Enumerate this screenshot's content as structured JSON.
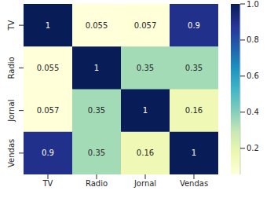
{
  "chart_data": {
    "type": "heatmap",
    "x_categories": [
      "TV",
      "Radio",
      "Jornal",
      "Vendas"
    ],
    "y_categories": [
      "TV",
      "Radio",
      "Jornal",
      "Vendas"
    ],
    "cells": [
      [
        1,
        0.055,
        0.057,
        0.9
      ],
      [
        0.055,
        1,
        0.35,
        0.35
      ],
      [
        0.057,
        0.35,
        1,
        0.16
      ],
      [
        0.9,
        0.35,
        0.16,
        1
      ]
    ],
    "color": "YlGnBu",
    "data_labels": true,
    "color_range": [
      0.055,
      1
    ],
    "color_ticks": [
      0.2,
      0.4,
      0.6,
      0.8,
      {
        "value": 1,
        "label": "1.0"
      }
    ]
  }
}
